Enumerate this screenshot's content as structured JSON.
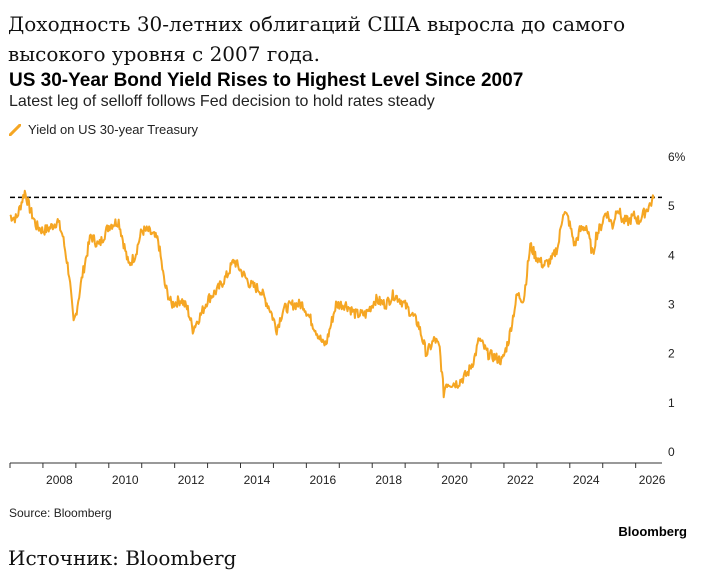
{
  "header": {
    "ru_title": "Доходность 30-летних облигаций США выросла до самого высокого уровня с 2007 года.",
    "ru_source": "Источник: Bloomberg"
  },
  "colors": {
    "series": "#f5a623",
    "reference_line": "#000000",
    "axis": "#333333"
  },
  "chart_data": {
    "type": "line",
    "title": "US 30-Year Bond Yield Rises to Highest Level Since 2007",
    "subtitle": "Latest leg of selloff follows Fed decision to hold rates steady",
    "source": "Source: Bloomberg",
    "brand": "Bloomberg",
    "xlabel": "",
    "ylabel": "",
    "xlim": [
      2007.0,
      2026.8
    ],
    "ylim": [
      0,
      6
    ],
    "x_ticks": [
      2008,
      2010,
      2012,
      2014,
      2016,
      2018,
      2020,
      2022,
      2024,
      2026
    ],
    "y_ticks": [
      0,
      1,
      2,
      3,
      4,
      5,
      6
    ],
    "y_tick_labels": [
      "0",
      "1",
      "2",
      "3",
      "4",
      "5",
      "6%"
    ],
    "grid": false,
    "legend_position": "top-left",
    "reference_line": {
      "y": 5.18,
      "style": "dashed"
    },
    "series": [
      {
        "name": "Yield on US 30-year Treasury",
        "x": [
          2007.0,
          2007.2,
          2007.45,
          2007.6,
          2007.8,
          2008.0,
          2008.2,
          2008.45,
          2008.6,
          2008.8,
          2008.93,
          2009.0,
          2009.2,
          2009.45,
          2009.7,
          2010.0,
          2010.3,
          2010.6,
          2010.8,
          2011.0,
          2011.2,
          2011.5,
          2011.7,
          2011.9,
          2012.2,
          2012.4,
          2012.55,
          2012.8,
          2013.0,
          2013.3,
          2013.6,
          2013.8,
          2014.0,
          2014.3,
          2014.6,
          2014.9,
          2015.1,
          2015.3,
          2015.6,
          2015.9,
          2016.2,
          2016.5,
          2016.6,
          2016.9,
          2017.2,
          2017.5,
          2017.8,
          2018.1,
          2018.4,
          2018.65,
          2018.85,
          2019.1,
          2019.4,
          2019.65,
          2019.9,
          2020.05,
          2020.17,
          2020.25,
          2020.35,
          2020.6,
          2020.9,
          2021.1,
          2021.25,
          2021.5,
          2021.8,
          2021.95,
          2022.15,
          2022.4,
          2022.6,
          2022.8,
          2022.95,
          2023.2,
          2023.45,
          2023.65,
          2023.8,
          2023.95,
          2024.15,
          2024.3,
          2024.5,
          2024.7,
          2024.8,
          2024.95,
          2025.1,
          2025.3,
          2025.45,
          2025.6,
          2025.8,
          2025.95,
          2026.1,
          2026.3,
          2026.55
        ],
        "values": [
          4.8,
          4.75,
          5.3,
          4.95,
          4.6,
          4.5,
          4.55,
          4.7,
          4.4,
          3.6,
          2.6,
          2.8,
          3.6,
          4.4,
          4.2,
          4.6,
          4.7,
          3.8,
          4.0,
          4.5,
          4.5,
          4.3,
          3.4,
          3.0,
          3.1,
          2.9,
          2.5,
          2.8,
          3.1,
          3.3,
          3.6,
          3.9,
          3.7,
          3.4,
          3.3,
          2.9,
          2.5,
          2.9,
          3.0,
          3.0,
          2.6,
          2.2,
          2.2,
          3.0,
          3.0,
          2.8,
          2.8,
          3.1,
          3.0,
          3.2,
          3.1,
          2.9,
          2.6,
          2.0,
          2.3,
          2.1,
          1.2,
          1.4,
          1.4,
          1.4,
          1.6,
          1.9,
          2.3,
          2.0,
          1.9,
          1.85,
          2.3,
          3.2,
          3.1,
          4.2,
          4.0,
          3.8,
          3.9,
          4.2,
          4.9,
          4.75,
          4.2,
          4.5,
          4.6,
          4.0,
          4.4,
          4.6,
          4.9,
          4.6,
          5.0,
          4.7,
          4.7,
          4.8,
          4.7,
          4.9,
          5.15
        ]
      }
    ]
  }
}
